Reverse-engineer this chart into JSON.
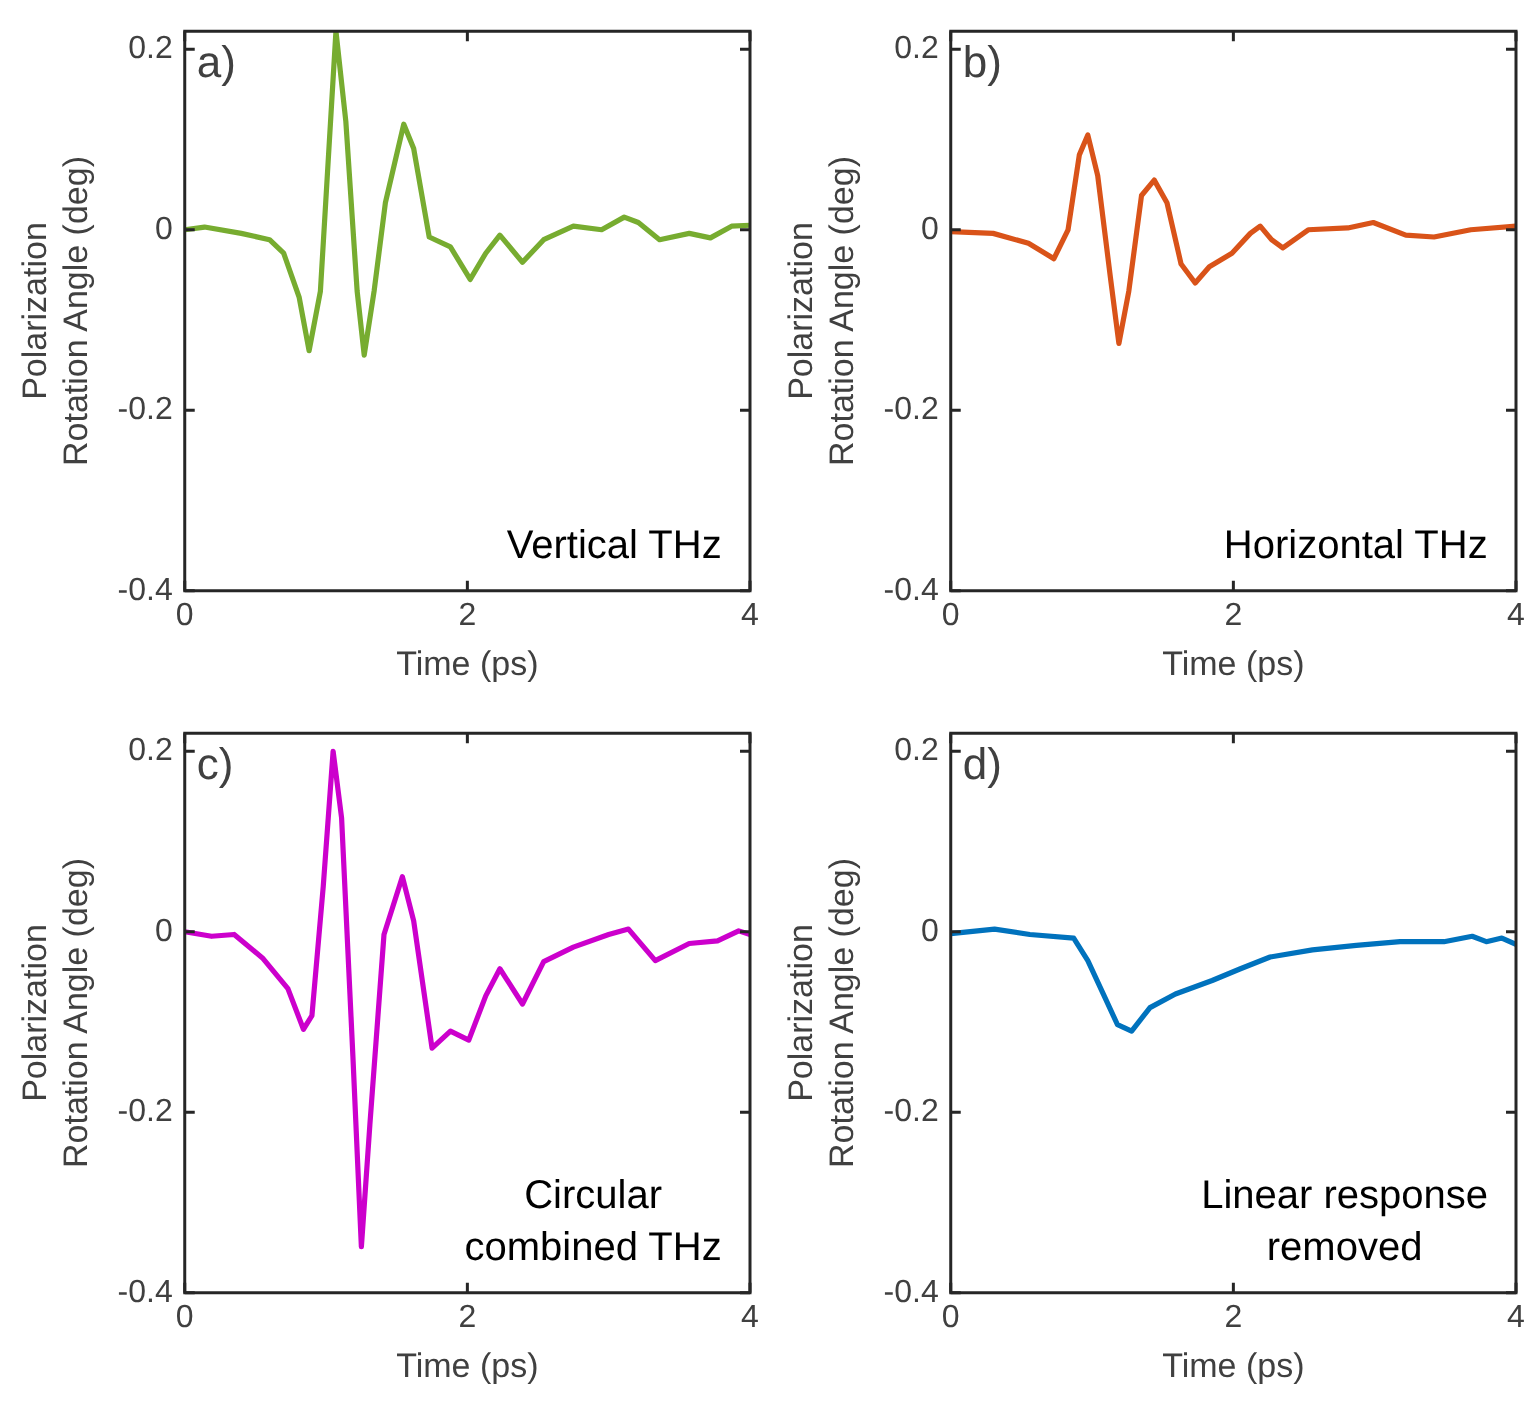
{
  "chart_data": [
    {
      "type": "line",
      "xlabel": "Time (ps)",
      "ylabel": "Polarization Rotation Angle (deg)",
      "annotations": [
        "a)",
        "Vertical THz"
      ],
      "xlim": [
        0,
        4
      ],
      "ylim": [
        -0.4,
        0.22
      ],
      "xticks": [
        0,
        2,
        4
      ],
      "yticks": [
        -0.4,
        -0.2,
        0,
        0.2
      ],
      "grid": false,
      "legend": false,
      "marker": "none",
      "line_style": "solid",
      "series": [
        {
          "color": "#77ac30",
          "x": [
            0,
            0.14,
            0.4,
            0.6,
            0.7,
            0.81,
            0.88,
            0.96,
            1.07,
            1.14,
            1.22,
            1.27,
            1.34,
            1.42,
            1.55,
            1.62,
            1.73,
            1.88,
            2.02,
            2.13,
            2.23,
            2.39,
            2.54,
            2.75,
            2.95,
            3.11,
            3.21,
            3.36,
            3.57,
            3.72,
            3.87,
            4
          ],
          "values": [
            0,
            0.003,
            -0.004,
            -0.011,
            -0.026,
            -0.075,
            -0.134,
            -0.068,
            0.22,
            0.12,
            -0.068,
            -0.139,
            -0.068,
            0.03,
            0.117,
            0.09,
            -0.008,
            -0.019,
            -0.055,
            -0.026,
            -0.006,
            -0.036,
            -0.011,
            0.004,
            0,
            0.014,
            0.008,
            -0.011,
            -0.004,
            -0.009,
            0.004,
            0.005
          ]
        }
      ]
    },
    {
      "type": "line",
      "xlabel": "Time (ps)",
      "ylabel": "Polarization Rotation Angle (deg)",
      "annotations": [
        "b)",
        "Horizontal THz"
      ],
      "xlim": [
        0,
        4
      ],
      "ylim": [
        -0.4,
        0.22
      ],
      "xticks": [
        0,
        2,
        4
      ],
      "yticks": [
        -0.4,
        -0.2,
        0,
        0.2
      ],
      "grid": false,
      "legend": false,
      "marker": "none",
      "line_style": "solid",
      "series": [
        {
          "color": "#d95319",
          "x": [
            0,
            0.3,
            0.55,
            0.73,
            0.83,
            0.91,
            0.97,
            1.04,
            1.13,
            1.19,
            1.26,
            1.35,
            1.44,
            1.53,
            1.63,
            1.73,
            1.83,
            1.99,
            2.12,
            2.19,
            2.27,
            2.35,
            2.53,
            2.81,
            2.99,
            3.22,
            3.42,
            3.68,
            4
          ],
          "values": [
            -0.002,
            -0.004,
            -0.015,
            -0.032,
            0,
            0.083,
            0.105,
            0.06,
            -0.053,
            -0.126,
            -0.068,
            0.038,
            0.055,
            0.03,
            -0.038,
            -0.059,
            -0.041,
            -0.026,
            -0.004,
            0.004,
            -0.011,
            -0.02,
            0,
            0.002,
            0.008,
            -0.006,
            -0.008,
            0,
            0.004
          ]
        }
      ]
    },
    {
      "type": "line",
      "xlabel": "Time (ps)",
      "ylabel": "Polarization Rotation Angle (deg)",
      "annotations": [
        "c)",
        "Circular combined THz"
      ],
      "xlim": [
        0,
        4
      ],
      "ylim": [
        -0.4,
        0.22
      ],
      "xticks": [
        0,
        2,
        4
      ],
      "yticks": [
        -0.4,
        -0.2,
        0,
        0.2
      ],
      "grid": false,
      "legend": false,
      "marker": "none",
      "line_style": "solid",
      "series": [
        {
          "color": "#cc00cc",
          "x": [
            0,
            0.19,
            0.35,
            0.55,
            0.73,
            0.84,
            0.9,
            0.98,
            1.05,
            1.11,
            1.19,
            1.25,
            1.31,
            1.41,
            1.54,
            1.62,
            1.75,
            1.88,
            2.01,
            2.13,
            2.23,
            2.39,
            2.54,
            2.75,
            3,
            3.14,
            3.33,
            3.57,
            3.77,
            3.92,
            4
          ],
          "values": [
            0,
            -0.005,
            -0.003,
            -0.029,
            -0.063,
            -0.108,
            -0.093,
            0.05,
            0.2,
            0.126,
            -0.138,
            -0.349,
            -0.214,
            -0.003,
            0.061,
            0.012,
            -0.129,
            -0.11,
            -0.12,
            -0.071,
            -0.041,
            -0.08,
            -0.033,
            -0.017,
            -0.003,
            0.003,
            -0.032,
            -0.013,
            -0.01,
            0.001,
            -0.003
          ]
        }
      ]
    },
    {
      "type": "line",
      "xlabel": "Time (ps)",
      "ylabel": "Polarization Rotation Angle (deg)",
      "annotations": [
        "d)",
        "Linear response removed"
      ],
      "xlim": [
        0,
        4
      ],
      "ylim": [
        -0.4,
        0.22
      ],
      "xticks": [
        0,
        2,
        4
      ],
      "yticks": [
        -0.4,
        -0.2,
        0,
        0.2
      ],
      "grid": false,
      "legend": false,
      "marker": "none",
      "line_style": "solid",
      "series": [
        {
          "color": "#0072bd",
          "x": [
            0,
            0.31,
            0.56,
            0.87,
            0.97,
            1.08,
            1.18,
            1.28,
            1.41,
            1.59,
            1.85,
            2.05,
            2.26,
            2.56,
            2.87,
            3.18,
            3.49,
            3.69,
            3.79,
            3.9,
            4
          ],
          "values": [
            -0.002,
            0.003,
            -0.003,
            -0.007,
            -0.032,
            -0.069,
            -0.103,
            -0.11,
            -0.084,
            -0.069,
            -0.054,
            -0.041,
            -0.028,
            -0.02,
            -0.015,
            -0.011,
            -0.011,
            -0.005,
            -0.011,
            -0.007,
            -0.014
          ]
        }
      ]
    }
  ]
}
